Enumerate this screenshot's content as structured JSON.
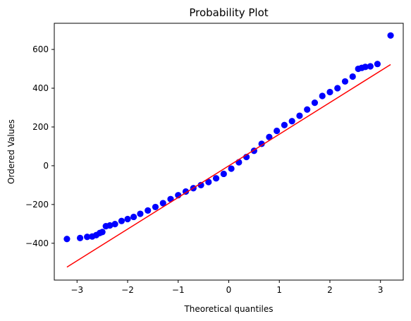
{
  "chart_data": {
    "type": "scatter",
    "title": "Probability Plot",
    "xlabel": "Theoretical quantiles",
    "ylabel": "Ordered Values",
    "xlim": [
      -3.45,
      3.45
    ],
    "ylim": [
      -590,
      735
    ],
    "xticks": [
      -3,
      -2,
      -1,
      0,
      1,
      2,
      3
    ],
    "xtick_labels": [
      "−3",
      "−2",
      "−1",
      "0",
      "1",
      "2",
      "3"
    ],
    "yticks": [
      -400,
      -200,
      0,
      200,
      400,
      600
    ],
    "ytick_labels": [
      "−400",
      "−200",
      "0",
      "200",
      "400",
      "600"
    ],
    "grid": false,
    "series": [
      {
        "kind": "points",
        "color": "#0000ff",
        "points": [
          [
            -3.2,
            -378
          ],
          [
            -2.94,
            -373
          ],
          [
            -2.8,
            -367
          ],
          [
            -2.7,
            -365
          ],
          [
            -2.62,
            -358
          ],
          [
            -2.55,
            -347
          ],
          [
            -2.5,
            -342
          ],
          [
            -2.43,
            -312
          ],
          [
            -2.35,
            -308
          ],
          [
            -2.25,
            -301
          ],
          [
            -2.12,
            -285
          ],
          [
            -2.0,
            -275
          ],
          [
            -1.88,
            -264
          ],
          [
            -1.75,
            -248
          ],
          [
            -1.6,
            -231
          ],
          [
            -1.45,
            -213
          ],
          [
            -1.3,
            -193
          ],
          [
            -1.15,
            -172
          ],
          [
            -1.0,
            -152
          ],
          [
            -0.85,
            -133
          ],
          [
            -0.7,
            -116
          ],
          [
            -0.55,
            -100
          ],
          [
            -0.4,
            -84
          ],
          [
            -0.25,
            -65
          ],
          [
            -0.1,
            -42
          ],
          [
            0.05,
            -15
          ],
          [
            0.2,
            18
          ],
          [
            0.35,
            45
          ],
          [
            0.5,
            77
          ],
          [
            0.65,
            113
          ],
          [
            0.8,
            148
          ],
          [
            0.95,
            180
          ],
          [
            1.1,
            210
          ],
          [
            1.25,
            230
          ],
          [
            1.4,
            258
          ],
          [
            1.55,
            290
          ],
          [
            1.7,
            325
          ],
          [
            1.85,
            360
          ],
          [
            2.0,
            380
          ],
          [
            2.15,
            400
          ],
          [
            2.3,
            435
          ],
          [
            2.45,
            460
          ],
          [
            2.56,
            500
          ],
          [
            2.63,
            505
          ],
          [
            2.7,
            510
          ],
          [
            2.8,
            513
          ],
          [
            2.94,
            525
          ],
          [
            3.2,
            672
          ]
        ]
      },
      {
        "kind": "line",
        "color": "#ff0000",
        "points": [
          [
            -3.2,
            -523
          ],
          [
            3.2,
            522
          ]
        ]
      }
    ]
  }
}
